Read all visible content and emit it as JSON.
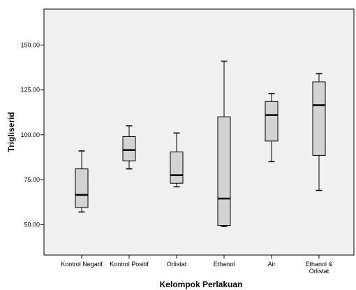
{
  "chart_data": {
    "type": "boxplot",
    "xlabel": "Kelompok Perlakuan",
    "ylabel": "Trigliserid",
    "ylim": [
      33,
      170
    ],
    "yticks": [
      "50.00",
      "75.00",
      "100.00",
      "125.00",
      "150.00"
    ],
    "ytick_values": [
      50,
      75,
      100,
      125,
      150
    ],
    "grid": false,
    "colors": {
      "plot_bg": "#f0f0f0",
      "box_fill": "#d3d3d3",
      "stroke": "#000000",
      "frame": "#000000"
    },
    "categories": [
      {
        "label": [
          "Kontrol Negatif"
        ],
        "min": 57,
        "q1": 59.5,
        "median": 66.5,
        "q3": 81,
        "max": 91
      },
      {
        "label": [
          "Kontrol Positif"
        ],
        "min": 81,
        "q1": 85.5,
        "median": 91.5,
        "q3": 99,
        "max": 105
      },
      {
        "label": [
          "Orlistat"
        ],
        "min": 71,
        "q1": 73,
        "median": 77.5,
        "q3": 90.5,
        "max": 101
      },
      {
        "label": [
          "Ethanol"
        ],
        "min": 49,
        "q1": 49.5,
        "median": 64.5,
        "q3": 110,
        "max": 141
      },
      {
        "label": [
          "Air"
        ],
        "min": 85,
        "q1": 96.5,
        "median": 111,
        "q3": 118.5,
        "max": 123
      },
      {
        "label": [
          "Ethanol &",
          "Orlistat"
        ],
        "min": 69,
        "q1": 88.5,
        "median": 116.5,
        "q3": 129.5,
        "max": 134
      }
    ]
  }
}
